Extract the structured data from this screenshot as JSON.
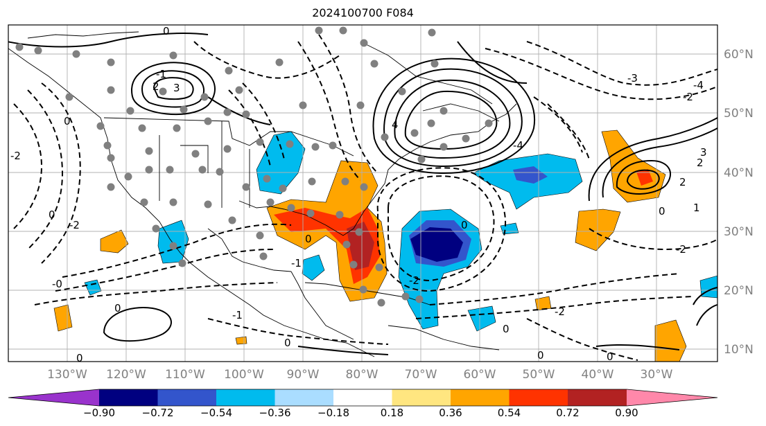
{
  "title": "2024100700 F084",
  "map": {
    "lon_labels": [
      "130°W",
      "120°W",
      "110°W",
      "100°W",
      "90°W",
      "80°W",
      "70°W",
      "60°W",
      "50°W",
      "40°W",
      "30°W"
    ],
    "lat_labels": [
      "60°N",
      "50°N",
      "40°N",
      "30°N",
      "20°N",
      "10°N"
    ],
    "contour_labels": [
      "0",
      "-2",
      "-1",
      "2",
      "3",
      "-3",
      "4",
      "-4",
      "1",
      "-0"
    ]
  },
  "colorbar": {
    "ticks": [
      "−0.90",
      "−0.72",
      "−0.54",
      "−0.36",
      "−0.18",
      "0.18",
      "0.36",
      "0.54",
      "0.72",
      "0.90"
    ],
    "colors": [
      "#9933cc",
      "#000080",
      "#3355cc",
      "#00bbee",
      "#aaddff",
      "#ffffff",
      "#ffe680",
      "#ffa500",
      "#ff3300",
      "#b22222",
      "#ff88aa",
      "#ff88aa"
    ]
  }
}
